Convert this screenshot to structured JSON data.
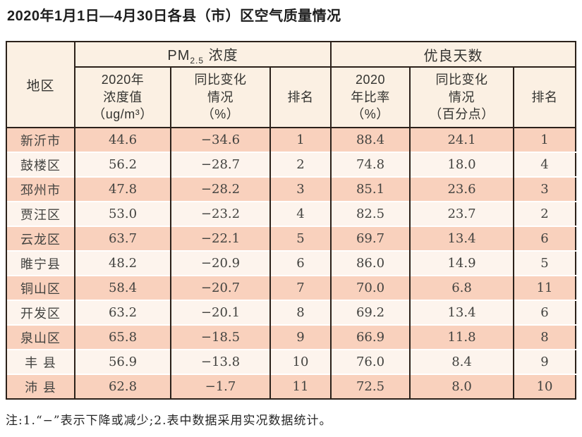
{
  "page": {
    "title": "2020年1月1日—4月30日各县（市）区空气质量情况",
    "note": "注:1.“−”表示下降或减少;2.表中数据采用实况数据统计。"
  },
  "colors": {
    "border": "#2b211a",
    "header_bg": "#fbf0e3",
    "row_odd_bg": "#f9d1bd",
    "row_even_bg": "#fdf4ed",
    "title_text": "#1e1e1e",
    "body_text": "#434340"
  },
  "table": {
    "header": {
      "region": "地区",
      "pm25_prefix": "PM",
      "pm25_sub": "2.5",
      "pm25_suffix": " 浓度",
      "good_days": "优良天数",
      "sub_columns": [
        "2020年\n浓度值\n（ug/m³）",
        "同比变化\n情况\n（%）",
        "排名",
        "2020\n年比率\n（%）",
        "同比变化\n情况\n（百分点）",
        "排名"
      ]
    },
    "rows": [
      {
        "cells": [
          "新沂市",
          "44.6",
          "−34.6",
          "1",
          "88.4",
          "24.1",
          "1"
        ]
      },
      {
        "cells": [
          "鼓楼区",
          "56.2",
          "−28.7",
          "2",
          "74.8",
          "18.0",
          "4"
        ]
      },
      {
        "cells": [
          "邳州市",
          "47.8",
          "−28.2",
          "3",
          "85.1",
          "23.6",
          "3"
        ]
      },
      {
        "cells": [
          "贾汪区",
          "53.0",
          "−23.2",
          "4",
          "82.5",
          "23.7",
          "2"
        ]
      },
      {
        "cells": [
          "云龙区",
          "63.7",
          "−22.1",
          "5",
          "69.7",
          "13.4",
          "6"
        ]
      },
      {
        "cells": [
          "睢宁县",
          "48.2",
          "−20.9",
          "6",
          "86.0",
          "14.9",
          "5"
        ]
      },
      {
        "cells": [
          "铜山区",
          "58.4",
          "−20.7",
          "7",
          "70.0",
          "6.8",
          "11"
        ]
      },
      {
        "cells": [
          "开发区",
          "63.2",
          "−20.1",
          "8",
          "69.2",
          "13.4",
          "6"
        ]
      },
      {
        "cells": [
          "泉山区",
          "65.8",
          "−18.5",
          "9",
          "66.9",
          "11.8",
          "8"
        ]
      },
      {
        "cells": [
          "丰 县",
          "56.9",
          "−13.8",
          "10",
          "76.0",
          "8.4",
          "9"
        ]
      },
      {
        "cells": [
          "沛 县",
          "62.8",
          "−1.7",
          "11",
          "72.5",
          "8.0",
          "10"
        ]
      }
    ]
  }
}
